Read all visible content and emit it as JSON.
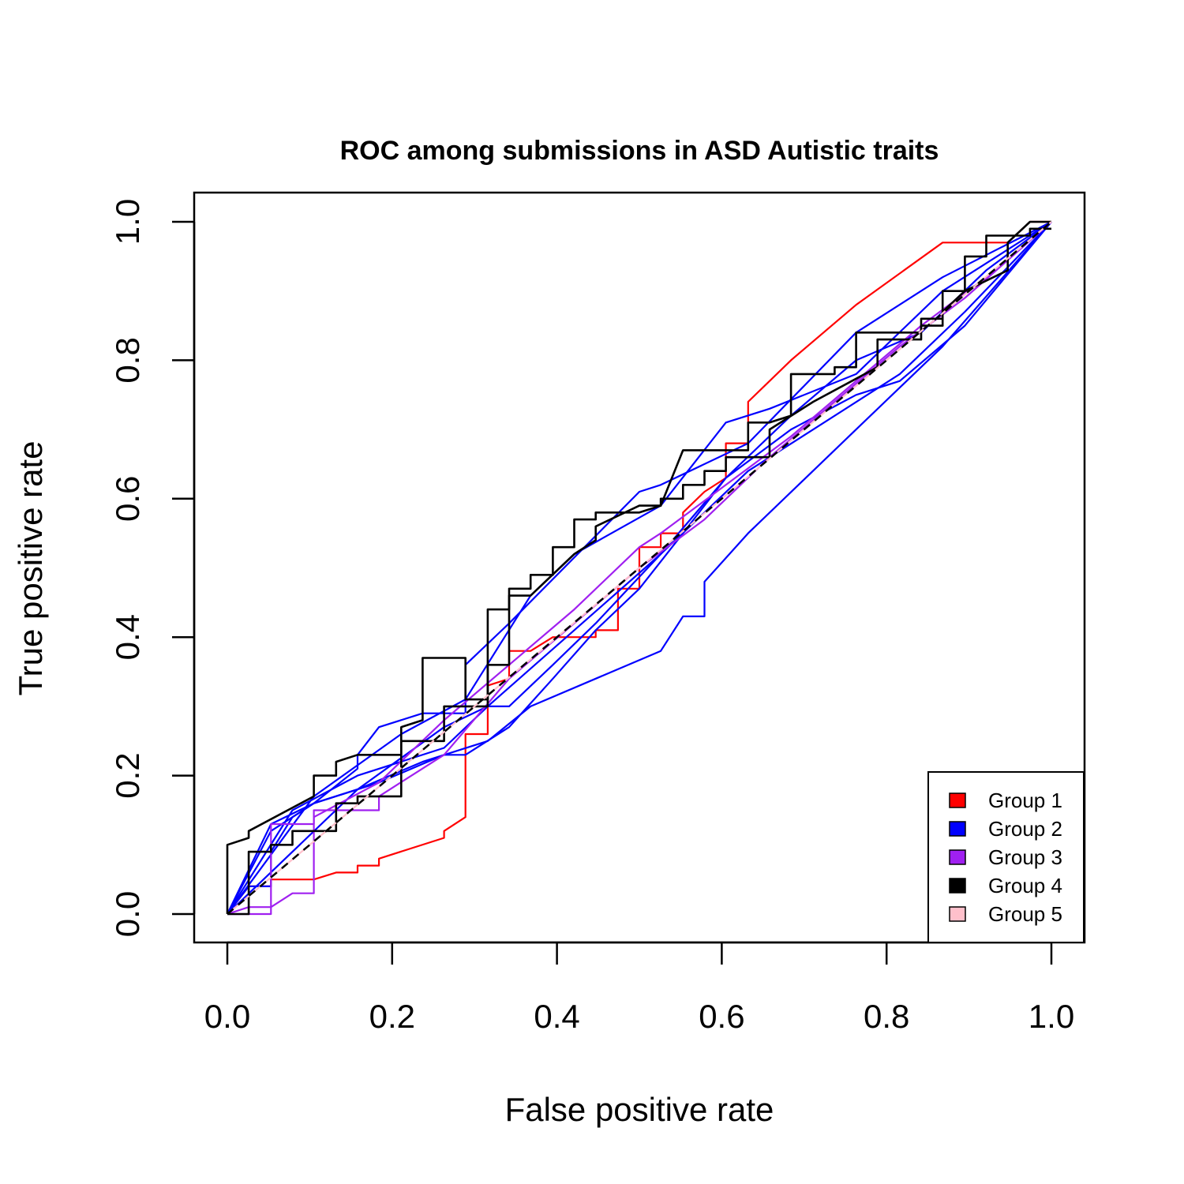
{
  "chart_data": {
    "type": "line",
    "title": "ROC among submissions in ASD Autistic traits",
    "xlabel": "False positive rate",
    "ylabel": "True positive rate",
    "xlim": [
      0,
      1
    ],
    "ylim": [
      0,
      1
    ],
    "xticks": [
      "0.0",
      "0.2",
      "0.4",
      "0.6",
      "0.8",
      "1.0"
    ],
    "yticks": [
      "0.0",
      "0.2",
      "0.4",
      "0.6",
      "0.8",
      "1.0"
    ],
    "grid": false,
    "legend_position": "bottom-right",
    "legend": [
      {
        "label": "Group 1",
        "color": "#ff0000"
      },
      {
        "label": "Group 2",
        "color": "#0000ff"
      },
      {
        "label": "Group 3",
        "color": "#a020f0"
      },
      {
        "label": "Group 4",
        "color": "#000000"
      },
      {
        "label": "Group 5",
        "color": "#ffc0cb"
      }
    ],
    "reference_line": {
      "x": [
        0,
        1
      ],
      "y": [
        0,
        1
      ],
      "style": "dashed",
      "color": "#000000"
    },
    "series": [
      {
        "group": 1,
        "color": "#ff0000",
        "points": [
          [
            0,
            0
          ],
          [
            0.026,
            0.04
          ],
          [
            0.053,
            0.04
          ],
          [
            0.053,
            0.05
          ],
          [
            0.105,
            0.05
          ],
          [
            0.132,
            0.06
          ],
          [
            0.158,
            0.06
          ],
          [
            0.158,
            0.07
          ],
          [
            0.184,
            0.07
          ],
          [
            0.184,
            0.08
          ],
          [
            0.263,
            0.11
          ],
          [
            0.263,
            0.12
          ],
          [
            0.289,
            0.14
          ],
          [
            0.289,
            0.26
          ],
          [
            0.316,
            0.26
          ],
          [
            0.316,
            0.33
          ],
          [
            0.342,
            0.34
          ],
          [
            0.342,
            0.38
          ],
          [
            0.368,
            0.38
          ],
          [
            0.395,
            0.4
          ],
          [
            0.421,
            0.4
          ],
          [
            0.447,
            0.4
          ],
          [
            0.447,
            0.41
          ],
          [
            0.474,
            0.41
          ],
          [
            0.474,
            0.47
          ],
          [
            0.5,
            0.47
          ],
          [
            0.5,
            0.53
          ],
          [
            0.526,
            0.53
          ],
          [
            0.526,
            0.55
          ],
          [
            0.553,
            0.55
          ],
          [
            0.553,
            0.58
          ],
          [
            0.579,
            0.61
          ],
          [
            0.605,
            0.63
          ],
          [
            0.605,
            0.68
          ],
          [
            0.632,
            0.68
          ],
          [
            0.632,
            0.74
          ],
          [
            0.684,
            0.8
          ],
          [
            0.763,
            0.88
          ],
          [
            0.868,
            0.97
          ],
          [
            0.947,
            0.97
          ],
          [
            0.974,
            1.0
          ],
          [
            1,
            1
          ]
        ]
      },
      {
        "group": 2,
        "color": "#0000ff",
        "points": [
          [
            0,
            0
          ],
          [
            0.026,
            0.04
          ],
          [
            0.053,
            0.04
          ],
          [
            0.053,
            0.09
          ],
          [
            0.079,
            0.14
          ],
          [
            0.105,
            0.16
          ],
          [
            0.158,
            0.21
          ],
          [
            0.158,
            0.23
          ],
          [
            0.184,
            0.27
          ],
          [
            0.237,
            0.29
          ],
          [
            0.289,
            0.29
          ],
          [
            0.289,
            0.36
          ],
          [
            0.342,
            0.42
          ],
          [
            0.5,
            0.61
          ],
          [
            0.526,
            0.62
          ],
          [
            0.632,
            0.68
          ],
          [
            0.763,
            0.84
          ],
          [
            0.868,
            0.92
          ],
          [
            1,
            1
          ]
        ]
      },
      {
        "group": 2,
        "color": "#0000ff",
        "points": [
          [
            0,
            0
          ],
          [
            0.053,
            0.12
          ],
          [
            0.105,
            0.16
          ],
          [
            0.184,
            0.19
          ],
          [
            0.263,
            0.23
          ],
          [
            0.289,
            0.23
          ],
          [
            0.342,
            0.27
          ],
          [
            0.395,
            0.34
          ],
          [
            0.447,
            0.41
          ],
          [
            0.5,
            0.47
          ],
          [
            0.553,
            0.55
          ],
          [
            0.605,
            0.63
          ],
          [
            0.684,
            0.72
          ],
          [
            0.763,
            0.8
          ],
          [
            0.842,
            0.84
          ],
          [
            0.921,
            0.93
          ],
          [
            1,
            1
          ]
        ]
      },
      {
        "group": 2,
        "color": "#0000ff",
        "points": [
          [
            0,
            0
          ],
          [
            0.053,
            0.13
          ],
          [
            0.105,
            0.16
          ],
          [
            0.158,
            0.18
          ],
          [
            0.237,
            0.22
          ],
          [
            0.316,
            0.25
          ],
          [
            0.368,
            0.3
          ],
          [
            0.526,
            0.38
          ],
          [
            0.553,
            0.43
          ],
          [
            0.579,
            0.43
          ],
          [
            0.579,
            0.48
          ],
          [
            0.632,
            0.55
          ],
          [
            0.763,
            0.7
          ],
          [
            0.868,
            0.82
          ],
          [
            1,
            1
          ]
        ]
      },
      {
        "group": 2,
        "color": "#0000ff",
        "points": [
          [
            0,
            0
          ],
          [
            0.079,
            0.15
          ],
          [
            0.158,
            0.2
          ],
          [
            0.263,
            0.24
          ],
          [
            0.316,
            0.3
          ],
          [
            0.342,
            0.3
          ],
          [
            0.395,
            0.36
          ],
          [
            0.447,
            0.42
          ],
          [
            0.526,
            0.52
          ],
          [
            0.605,
            0.63
          ],
          [
            0.684,
            0.7
          ],
          [
            0.763,
            0.75
          ],
          [
            0.816,
            0.77
          ],
          [
            0.895,
            0.85
          ],
          [
            1,
            1
          ]
        ]
      },
      {
        "group": 2,
        "color": "#0000ff",
        "points": [
          [
            0,
            0
          ],
          [
            0.105,
            0.17
          ],
          [
            0.211,
            0.26
          ],
          [
            0.289,
            0.31
          ],
          [
            0.368,
            0.46
          ],
          [
            0.421,
            0.52
          ],
          [
            0.526,
            0.59
          ],
          [
            0.605,
            0.71
          ],
          [
            0.658,
            0.73
          ],
          [
            0.763,
            0.78
          ],
          [
            0.868,
            0.9
          ],
          [
            1,
            1
          ]
        ]
      },
      {
        "group": 2,
        "color": "#0000ff",
        "points": [
          [
            0,
            0
          ],
          [
            0.158,
            0.18
          ],
          [
            0.263,
            0.27
          ],
          [
            0.316,
            0.3
          ],
          [
            0.421,
            0.41
          ],
          [
            0.526,
            0.52
          ],
          [
            0.632,
            0.64
          ],
          [
            0.711,
            0.7
          ],
          [
            0.816,
            0.78
          ],
          [
            0.895,
            0.87
          ],
          [
            1,
            1
          ]
        ]
      },
      {
        "group": 3,
        "color": "#a020f0",
        "points": [
          [
            0,
            0
          ],
          [
            0.053,
            0.0
          ],
          [
            0.053,
            0.13
          ],
          [
            0.079,
            0.13
          ],
          [
            0.105,
            0.13
          ],
          [
            0.105,
            0.15
          ],
          [
            0.158,
            0.15
          ],
          [
            0.184,
            0.15
          ],
          [
            0.184,
            0.17
          ],
          [
            0.263,
            0.23
          ],
          [
            0.342,
            0.34
          ],
          [
            0.421,
            0.42
          ],
          [
            0.5,
            0.5
          ],
          [
            0.579,
            0.57
          ],
          [
            0.658,
            0.66
          ],
          [
            0.737,
            0.74
          ],
          [
            0.816,
            0.82
          ],
          [
            0.895,
            0.89
          ],
          [
            1,
            1
          ]
        ]
      },
      {
        "group": 3,
        "color": "#a020f0",
        "points": [
          [
            0,
            0
          ],
          [
            0.026,
            0.01
          ],
          [
            0.053,
            0.01
          ],
          [
            0.079,
            0.03
          ],
          [
            0.105,
            0.03
          ],
          [
            0.105,
            0.14
          ],
          [
            0.184,
            0.19
          ],
          [
            0.263,
            0.28
          ],
          [
            0.342,
            0.36
          ],
          [
            0.421,
            0.44
          ],
          [
            0.5,
            0.53
          ],
          [
            0.526,
            0.55
          ],
          [
            0.605,
            0.62
          ],
          [
            0.684,
            0.69
          ],
          [
            0.763,
            0.77
          ],
          [
            0.842,
            0.85
          ],
          [
            0.921,
            0.92
          ],
          [
            1,
            1
          ]
        ]
      },
      {
        "group": 4,
        "color": "#000000",
        "points": [
          [
            0,
            0
          ],
          [
            0,
            0.1
          ],
          [
            0.026,
            0.11
          ],
          [
            0.026,
            0.12
          ],
          [
            0.105,
            0.17
          ],
          [
            0.105,
            0.2
          ],
          [
            0.132,
            0.2
          ],
          [
            0.132,
            0.22
          ],
          [
            0.158,
            0.23
          ],
          [
            0.211,
            0.23
          ],
          [
            0.211,
            0.27
          ],
          [
            0.237,
            0.28
          ],
          [
            0.237,
            0.37
          ],
          [
            0.289,
            0.37
          ],
          [
            0.289,
            0.31
          ],
          [
            0.316,
            0.31
          ],
          [
            0.316,
            0.44
          ],
          [
            0.342,
            0.44
          ],
          [
            0.342,
            0.47
          ],
          [
            0.368,
            0.47
          ],
          [
            0.368,
            0.49
          ],
          [
            0.395,
            0.49
          ],
          [
            0.395,
            0.53
          ],
          [
            0.421,
            0.53
          ],
          [
            0.421,
            0.57
          ],
          [
            0.447,
            0.57
          ],
          [
            0.447,
            0.58
          ],
          [
            0.5,
            0.58
          ],
          [
            0.526,
            0.59
          ],
          [
            0.553,
            0.67
          ],
          [
            0.605,
            0.67
          ],
          [
            0.632,
            0.67
          ],
          [
            0.632,
            0.71
          ],
          [
            0.658,
            0.71
          ],
          [
            0.684,
            0.72
          ],
          [
            0.684,
            0.78
          ],
          [
            0.737,
            0.78
          ],
          [
            0.737,
            0.79
          ],
          [
            0.763,
            0.79
          ],
          [
            0.763,
            0.84
          ],
          [
            0.842,
            0.84
          ],
          [
            0.842,
            0.85
          ],
          [
            0.868,
            0.85
          ],
          [
            0.868,
            0.87
          ],
          [
            0.895,
            0.9
          ],
          [
            0.947,
            0.93
          ],
          [
            0.947,
            0.97
          ],
          [
            0.974,
            1.0
          ],
          [
            1,
            1
          ]
        ]
      },
      {
        "group": 4,
        "color": "#000000",
        "points": [
          [
            0,
            0
          ],
          [
            0.026,
            0.0
          ],
          [
            0.026,
            0.09
          ],
          [
            0.053,
            0.09
          ],
          [
            0.053,
            0.1
          ],
          [
            0.079,
            0.1
          ],
          [
            0.079,
            0.12
          ],
          [
            0.132,
            0.12
          ],
          [
            0.132,
            0.16
          ],
          [
            0.158,
            0.16
          ],
          [
            0.158,
            0.17
          ],
          [
            0.184,
            0.17
          ],
          [
            0.211,
            0.17
          ],
          [
            0.211,
            0.25
          ],
          [
            0.263,
            0.25
          ],
          [
            0.263,
            0.3
          ],
          [
            0.316,
            0.3
          ],
          [
            0.316,
            0.36
          ],
          [
            0.342,
            0.36
          ],
          [
            0.342,
            0.46
          ],
          [
            0.368,
            0.46
          ],
          [
            0.421,
            0.52
          ],
          [
            0.447,
            0.54
          ],
          [
            0.447,
            0.56
          ],
          [
            0.5,
            0.59
          ],
          [
            0.526,
            0.59
          ],
          [
            0.526,
            0.6
          ],
          [
            0.553,
            0.6
          ],
          [
            0.553,
            0.62
          ],
          [
            0.579,
            0.62
          ],
          [
            0.579,
            0.64
          ],
          [
            0.605,
            0.64
          ],
          [
            0.605,
            0.66
          ],
          [
            0.658,
            0.66
          ],
          [
            0.658,
            0.7
          ],
          [
            0.711,
            0.74
          ],
          [
            0.789,
            0.79
          ],
          [
            0.789,
            0.83
          ],
          [
            0.842,
            0.83
          ],
          [
            0.842,
            0.86
          ],
          [
            0.868,
            0.86
          ],
          [
            0.868,
            0.9
          ],
          [
            0.895,
            0.9
          ],
          [
            0.895,
            0.95
          ],
          [
            0.921,
            0.95
          ],
          [
            0.921,
            0.98
          ],
          [
            0.974,
            0.98
          ],
          [
            0.974,
            0.99
          ],
          [
            1,
            0.99
          ]
        ]
      },
      {
        "group": 5,
        "color": "#ffc0cb",
        "points": [
          [
            0,
            0
          ],
          [
            1,
            1
          ]
        ]
      }
    ]
  }
}
